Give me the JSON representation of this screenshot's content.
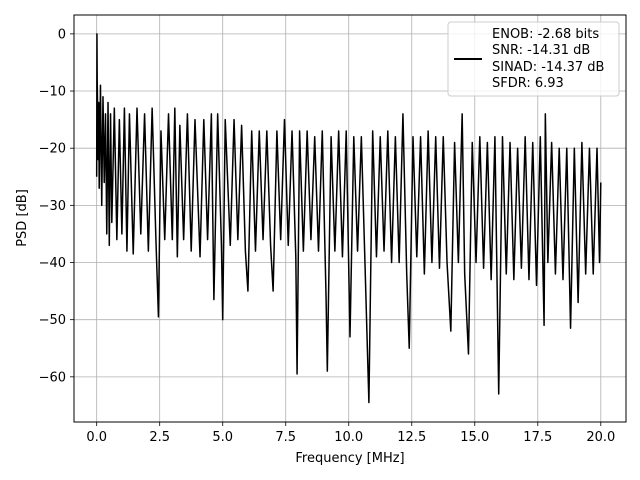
{
  "chart_data": {
    "type": "line",
    "title": "",
    "xlabel": "Frequency [MHz]",
    "ylabel": "PSD [dB]",
    "xlim": [
      -0.9,
      21.0
    ],
    "ylim": [
      -67.9,
      3.3
    ],
    "xticks": [
      0.0,
      2.5,
      5.0,
      7.5,
      10.0,
      12.5,
      15.0,
      17.5,
      20.0
    ],
    "xtick_labels": [
      "0.0",
      "2.5",
      "5.0",
      "7.5",
      "10.0",
      "12.5",
      "15.0",
      "17.5",
      "20.0"
    ],
    "yticks": [
      0,
      -10,
      -20,
      -30,
      -40,
      -50,
      -60
    ],
    "ytick_labels": [
      "0",
      "−10",
      "−20",
      "−30",
      "−40",
      "−50",
      "−60"
    ],
    "grid": true,
    "legend_position": "top-right",
    "legend_lines": [
      "ENOB: -2.68 bits",
      "SNR: -14.31 dB",
      "SINAD: -14.37 dB",
      "SFDR: 6.93"
    ],
    "line_color": "#000000",
    "series": [
      {
        "points": [
          [
            0.0,
            -25.0
          ],
          [
            0.01,
            0.0
          ],
          [
            0.02,
            -8.0
          ],
          [
            0.04,
            -14.0
          ],
          [
            0.06,
            -22.0
          ],
          [
            0.08,
            -12.0
          ],
          [
            0.1,
            -27.0
          ],
          [
            0.15,
            -9.0
          ],
          [
            0.2,
            -30.0
          ],
          [
            0.25,
            -11.0
          ],
          [
            0.3,
            -26.0
          ],
          [
            0.35,
            -14.0
          ],
          [
            0.4,
            -35.0
          ],
          [
            0.45,
            -12.0
          ],
          [
            0.5,
            -37.0
          ],
          [
            0.55,
            -14.0
          ],
          [
            0.6,
            -33.0
          ],
          [
            0.7,
            -13.0
          ],
          [
            0.8,
            -36.0
          ],
          [
            0.9,
            -15.0
          ],
          [
            1.0,
            -35.0
          ],
          [
            1.1,
            -13.0
          ],
          [
            1.2,
            -38.0
          ],
          [
            1.3,
            -14.0
          ],
          [
            1.45,
            -38.5
          ],
          [
            1.6,
            -13.0
          ],
          [
            1.75,
            -35.0
          ],
          [
            1.9,
            -14.0
          ],
          [
            2.05,
            -38.0
          ],
          [
            2.2,
            -13.0
          ],
          [
            2.35,
            -36.0
          ],
          [
            2.45,
            -49.5
          ],
          [
            2.55,
            -17.0
          ],
          [
            2.7,
            -36.0
          ],
          [
            2.85,
            -14.0
          ],
          [
            3.0,
            -36.0
          ],
          [
            3.1,
            -13.0
          ],
          [
            3.2,
            -39.0
          ],
          [
            3.3,
            -16.0
          ],
          [
            3.45,
            -36.0
          ],
          [
            3.6,
            -14.0
          ],
          [
            3.75,
            -38.0
          ],
          [
            3.9,
            -15.0
          ],
          [
            4.1,
            -39.0
          ],
          [
            4.25,
            -15.0
          ],
          [
            4.4,
            -36.0
          ],
          [
            4.55,
            -14.0
          ],
          [
            4.65,
            -46.5
          ],
          [
            4.8,
            -14.0
          ],
          [
            4.95,
            -37.0
          ],
          [
            5.0,
            -50.0
          ],
          [
            5.1,
            -15.0
          ],
          [
            5.3,
            -37.0
          ],
          [
            5.45,
            -15.0
          ],
          [
            5.6,
            -36.0
          ],
          [
            5.75,
            -16.0
          ],
          [
            5.9,
            -38.0
          ],
          [
            6.0,
            -45.0
          ],
          [
            6.15,
            -17.0
          ],
          [
            6.3,
            -38.0
          ],
          [
            6.45,
            -17.0
          ],
          [
            6.6,
            -36.0
          ],
          [
            6.75,
            -17.0
          ],
          [
            6.9,
            -37.0
          ],
          [
            7.0,
            -45.0
          ],
          [
            7.15,
            -17.0
          ],
          [
            7.3,
            -36.0
          ],
          [
            7.45,
            -15.0
          ],
          [
            7.6,
            -37.0
          ],
          [
            7.75,
            -17.0
          ],
          [
            7.9,
            -39.0
          ],
          [
            7.95,
            -59.5
          ],
          [
            8.05,
            -17.0
          ],
          [
            8.2,
            -38.0
          ],
          [
            8.35,
            -17.0
          ],
          [
            8.5,
            -36.0
          ],
          [
            8.65,
            -18.0
          ],
          [
            8.8,
            -38.0
          ],
          [
            8.95,
            -17.0
          ],
          [
            9.1,
            -46.0
          ],
          [
            9.15,
            -59.0
          ],
          [
            9.3,
            -18.0
          ],
          [
            9.45,
            -38.0
          ],
          [
            9.6,
            -17.0
          ],
          [
            9.75,
            -39.0
          ],
          [
            9.9,
            -17.0
          ],
          [
            10.05,
            -53.0
          ],
          [
            10.2,
            -18.0
          ],
          [
            10.35,
            -38.0
          ],
          [
            10.5,
            -18.0
          ],
          [
            10.65,
            -41.0
          ],
          [
            10.8,
            -64.5
          ],
          [
            10.95,
            -17.0
          ],
          [
            11.1,
            -39.0
          ],
          [
            11.25,
            -18.0
          ],
          [
            11.4,
            -38.0
          ],
          [
            11.55,
            -17.0
          ],
          [
            11.7,
            -40.0
          ],
          [
            11.85,
            -18.0
          ],
          [
            12.0,
            -40.0
          ],
          [
            12.15,
            -14.0
          ],
          [
            12.3,
            -42.0
          ],
          [
            12.4,
            -55.0
          ],
          [
            12.55,
            -18.0
          ],
          [
            12.7,
            -39.0
          ],
          [
            12.85,
            -18.0
          ],
          [
            13.0,
            -42.0
          ],
          [
            13.15,
            -17.0
          ],
          [
            13.3,
            -40.0
          ],
          [
            13.45,
            -18.0
          ],
          [
            13.6,
            -41.0
          ],
          [
            13.75,
            -18.0
          ],
          [
            13.9,
            -40.0
          ],
          [
            14.05,
            -52.0
          ],
          [
            14.2,
            -19.0
          ],
          [
            14.35,
            -40.0
          ],
          [
            14.5,
            -14.0
          ],
          [
            14.6,
            -42.0
          ],
          [
            14.75,
            -56.0
          ],
          [
            14.9,
            -19.0
          ],
          [
            15.05,
            -40.0
          ],
          [
            15.2,
            -18.0
          ],
          [
            15.35,
            -41.0
          ],
          [
            15.5,
            -19.0
          ],
          [
            15.65,
            -43.0
          ],
          [
            15.8,
            -18.0
          ],
          [
            15.95,
            -63.0
          ],
          [
            16.1,
            -18.0
          ],
          [
            16.25,
            -42.0
          ],
          [
            16.4,
            -19.0
          ],
          [
            16.55,
            -43.0
          ],
          [
            16.7,
            -20.0
          ],
          [
            16.85,
            -41.0
          ],
          [
            17.0,
            -18.0
          ],
          [
            17.15,
            -43.0
          ],
          [
            17.3,
            -19.0
          ],
          [
            17.45,
            -44.0
          ],
          [
            17.6,
            -18.0
          ],
          [
            17.75,
            -51.0
          ],
          [
            17.8,
            -14.0
          ],
          [
            17.9,
            -40.0
          ],
          [
            18.05,
            -19.0
          ],
          [
            18.2,
            -42.0
          ],
          [
            18.35,
            -20.0
          ],
          [
            18.5,
            -43.0
          ],
          [
            18.65,
            -20.0
          ],
          [
            18.8,
            -51.5
          ],
          [
            18.95,
            -20.0
          ],
          [
            19.1,
            -47.0
          ],
          [
            19.25,
            -19.0
          ],
          [
            19.4,
            -42.0
          ],
          [
            19.55,
            -20.0
          ],
          [
            19.7,
            -42.0
          ],
          [
            19.85,
            -20.0
          ],
          [
            19.95,
            -40.0
          ],
          [
            20.0,
            -26.0
          ]
        ]
      }
    ]
  }
}
